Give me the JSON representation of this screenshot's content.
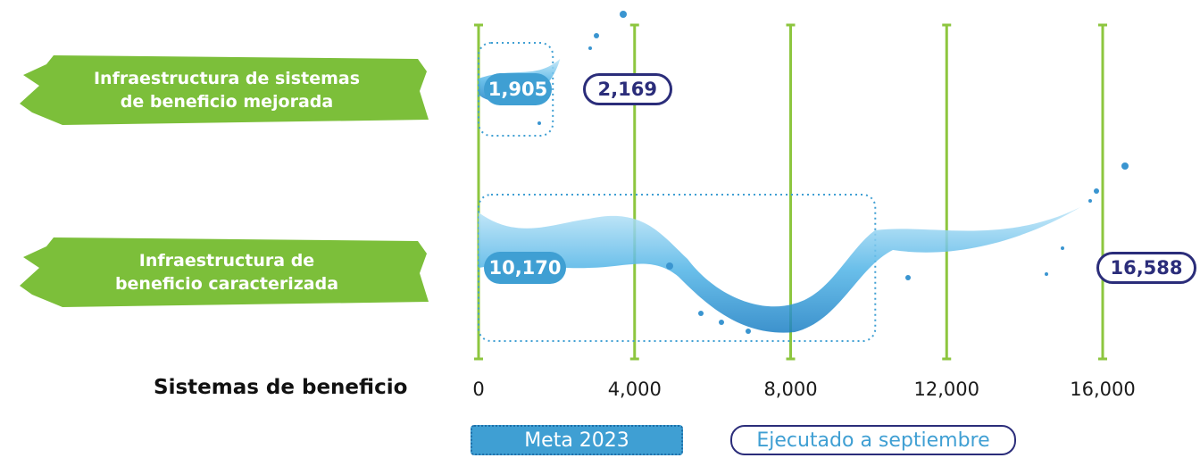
{
  "chart_data": {
    "type": "bar",
    "orientation": "horizontal",
    "categories": [
      "Infraestructura de sistemas\nde beneficio mejorada",
      "Infraestructura de\nbeneficio caracterizada"
    ],
    "series": [
      {
        "name": "Meta 2023",
        "values": [
          1905,
          10170
        ],
        "labels": [
          "1,905",
          "10,170"
        ]
      },
      {
        "name": "Ejecutado a septiembre",
        "values": [
          2169,
          16588
        ],
        "labels": [
          "2,169",
          "16,588"
        ]
      }
    ],
    "xlabel": "Sistemas de  beneficio",
    "xticks": [
      "0",
      "4,000",
      "8,000",
      "12,000",
      "16,000"
    ],
    "xtick_values": [
      0,
      4000,
      8000,
      12000,
      16000
    ],
    "xlim": [
      0,
      16000
    ],
    "grid": "vertical",
    "legend_position": "bottom"
  },
  "colors": {
    "category_label_bg": "#7cbf3a",
    "gridline": "#8dc63f",
    "meta": "#3f9fd3",
    "meta_border": "#1f6fa8",
    "executed_border": "#2b2d7a",
    "executed_text": "#2b2d7a",
    "legend_executed_text": "#3f9fd3"
  }
}
